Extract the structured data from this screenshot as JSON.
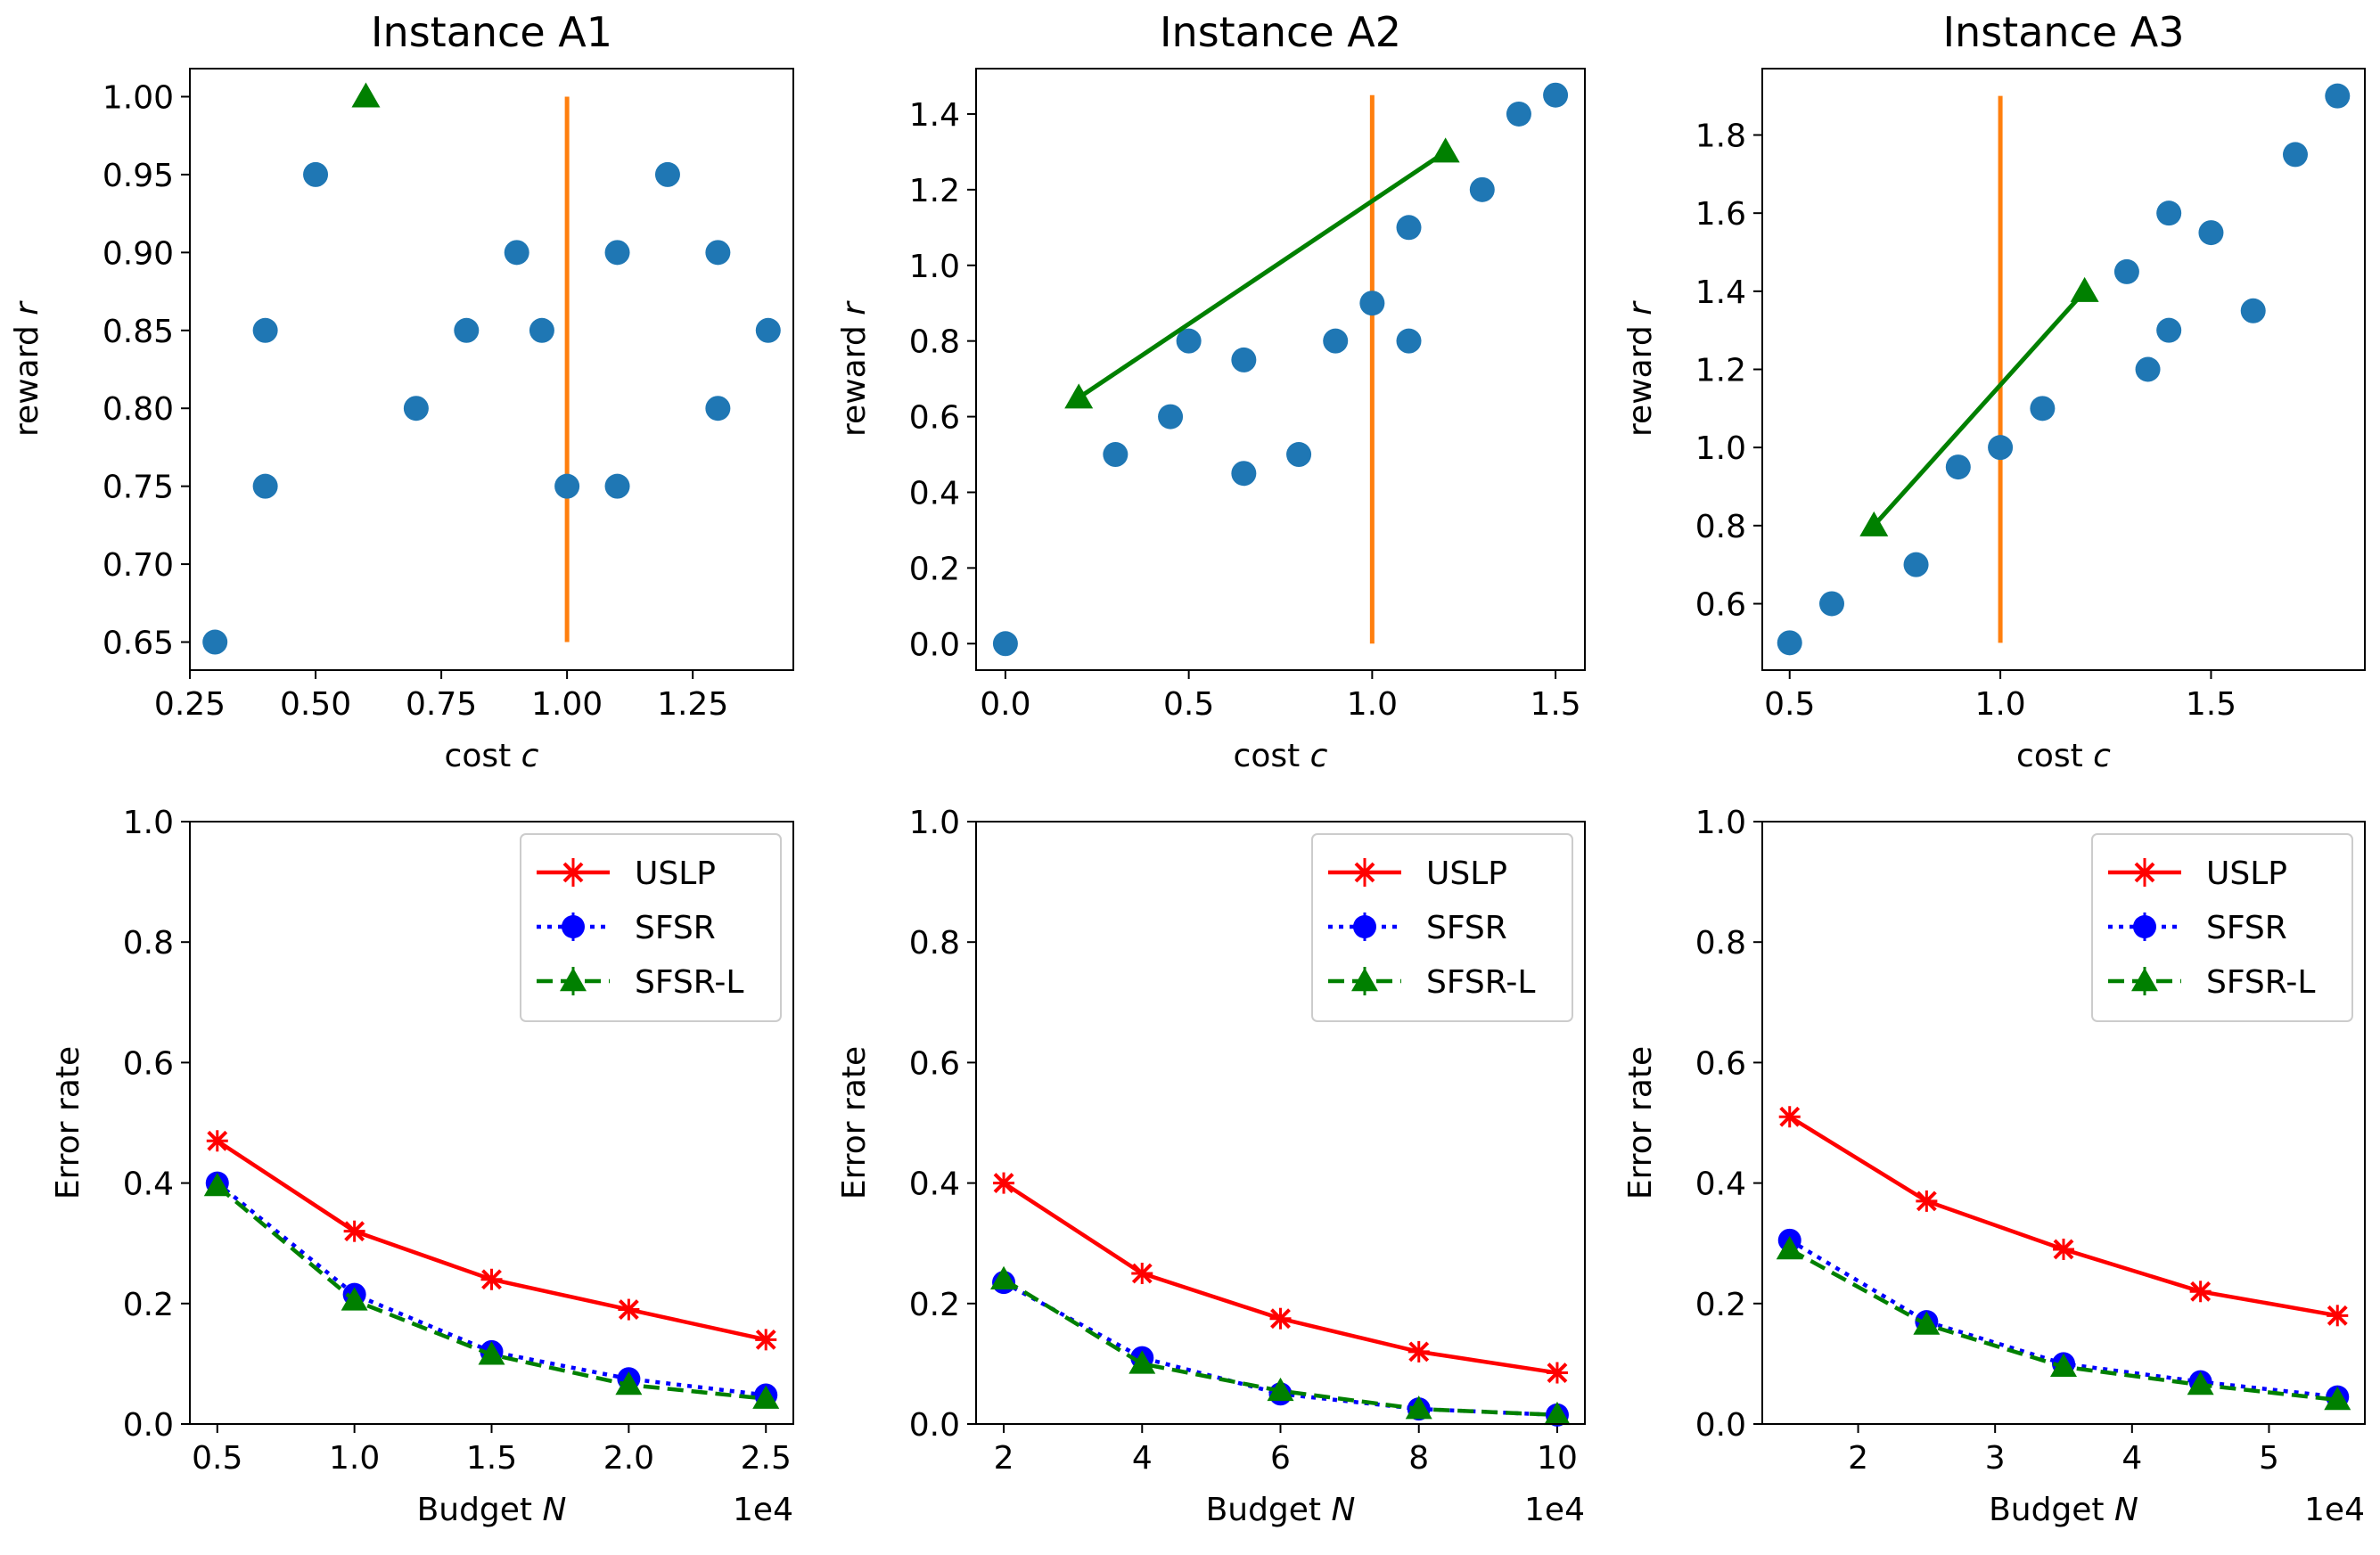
{
  "colors": {
    "scatter": "#1f77b4",
    "budget_line": "#ff7f0e",
    "best_arm": "#008000",
    "uslp": "#ff0000",
    "sfsr": "#0000ff",
    "sfsrl": "#008000"
  },
  "chart_data": [
    {
      "type": "scatter",
      "title": "Instance A1",
      "xlabel_main": "cost ",
      "xlabel_var": "c",
      "ylabel_main": "reward ",
      "ylabel_var": "r",
      "xlim": [
        0.25,
        1.45
      ],
      "ylim": [
        0.632,
        1.018
      ],
      "xticks": [
        0.25,
        0.5,
        0.75,
        1.0,
        1.25
      ],
      "xtick_labels": [
        "0.25",
        "0.50",
        "0.75",
        "1.00",
        "1.25"
      ],
      "yticks": [
        0.65,
        0.7,
        0.75,
        0.8,
        0.85,
        0.9,
        0.95,
        1.0
      ],
      "ytick_labels": [
        "0.65",
        "0.70",
        "0.75",
        "0.80",
        "0.85",
        "0.90",
        "0.95",
        "1.00"
      ],
      "points": [
        [
          0.3,
          0.65
        ],
        [
          0.4,
          0.85
        ],
        [
          0.4,
          0.75
        ],
        [
          0.5,
          0.95
        ],
        [
          0.7,
          0.8
        ],
        [
          0.8,
          0.85
        ],
        [
          0.9,
          0.9
        ],
        [
          0.95,
          0.85
        ],
        [
          1.0,
          0.75
        ],
        [
          1.1,
          0.9
        ],
        [
          1.1,
          0.75
        ],
        [
          1.2,
          0.95
        ],
        [
          1.3,
          0.9
        ],
        [
          1.3,
          0.8
        ],
        [
          1.4,
          0.85
        ]
      ],
      "budget_line": {
        "x": 1.0,
        "y_from": 0.65,
        "y_to": 1.0
      },
      "best_arms": [
        [
          0.6,
          1.0
        ]
      ]
    },
    {
      "type": "scatter",
      "title": "Instance A2",
      "xlabel_main": "cost ",
      "xlabel_var": "c",
      "ylabel_main": "reward ",
      "ylabel_var": "r",
      "xlim": [
        -0.08,
        1.58
      ],
      "ylim": [
        -0.07,
        1.52
      ],
      "xticks": [
        0.0,
        0.5,
        1.0,
        1.5
      ],
      "xtick_labels": [
        "0.0",
        "0.5",
        "1.0",
        "1.5"
      ],
      "yticks": [
        0.0,
        0.2,
        0.4,
        0.6,
        0.8,
        1.0,
        1.2,
        1.4
      ],
      "ytick_labels": [
        "0.0",
        "0.2",
        "0.4",
        "0.6",
        "0.8",
        "1.0",
        "1.2",
        "1.4"
      ],
      "points": [
        [
          0.0,
          0.0
        ],
        [
          0.3,
          0.5
        ],
        [
          0.45,
          0.6
        ],
        [
          0.5,
          0.8
        ],
        [
          0.65,
          0.75
        ],
        [
          0.65,
          0.45
        ],
        [
          0.8,
          0.5
        ],
        [
          0.9,
          0.8
        ],
        [
          1.0,
          0.9
        ],
        [
          1.1,
          1.1
        ],
        [
          1.1,
          0.8
        ],
        [
          1.3,
          1.2
        ],
        [
          1.4,
          1.4
        ],
        [
          1.5,
          1.45
        ]
      ],
      "budget_line": {
        "x": 1.0,
        "y_from": 0.0,
        "y_to": 1.45
      },
      "best_arms": [
        [
          0.2,
          0.65
        ],
        [
          1.2,
          1.3
        ]
      ]
    },
    {
      "type": "scatter",
      "title": "Instance A3",
      "xlabel_main": "cost ",
      "xlabel_var": "c",
      "ylabel_main": "reward ",
      "ylabel_var": "r",
      "xlim": [
        0.435,
        1.865
      ],
      "ylim": [
        0.43,
        1.97
      ],
      "xticks": [
        0.5,
        1.0,
        1.5
      ],
      "xtick_labels": [
        "0.5",
        "1.0",
        "1.5"
      ],
      "yticks": [
        0.6,
        0.8,
        1.0,
        1.2,
        1.4,
        1.6,
        1.8
      ],
      "ytick_labels": [
        "0.6",
        "0.8",
        "1.0",
        "1.2",
        "1.4",
        "1.6",
        "1.8"
      ],
      "points": [
        [
          0.5,
          0.5
        ],
        [
          0.6,
          0.6
        ],
        [
          0.8,
          0.7
        ],
        [
          0.9,
          0.95
        ],
        [
          1.0,
          1.0
        ],
        [
          1.1,
          1.1
        ],
        [
          1.3,
          1.45
        ],
        [
          1.35,
          1.2
        ],
        [
          1.4,
          1.6
        ],
        [
          1.4,
          1.3
        ],
        [
          1.5,
          1.55
        ],
        [
          1.6,
          1.35
        ],
        [
          1.7,
          1.75
        ],
        [
          1.8,
          1.9
        ]
      ],
      "budget_line": {
        "x": 1.0,
        "y_from": 0.5,
        "y_to": 1.9
      },
      "best_arms": [
        [
          0.7,
          0.8
        ],
        [
          1.2,
          1.4
        ]
      ]
    },
    {
      "type": "line",
      "xlabel_main": "Budget ",
      "xlabel_var": "N",
      "ylabel": "Error rate",
      "offset_text": "1e4",
      "xlim": [
        0.4,
        2.6
      ],
      "ylim": [
        0.0,
        1.0
      ],
      "xticks": [
        0.5,
        1.0,
        1.5,
        2.0,
        2.5
      ],
      "xtick_labels": [
        "0.5",
        "1.0",
        "1.5",
        "2.0",
        "2.5"
      ],
      "yticks": [
        0.0,
        0.2,
        0.4,
        0.6,
        0.8,
        1.0
      ],
      "ytick_labels": [
        "0.0",
        "0.2",
        "0.4",
        "0.6",
        "0.8",
        "1.0"
      ],
      "x": [
        0.5,
        1.0,
        1.5,
        2.0,
        2.5
      ],
      "legend_position": "upper right",
      "series": [
        {
          "name": "USLP",
          "style": "solid",
          "marker": "x",
          "values": [
            0.47,
            0.32,
            0.24,
            0.19,
            0.14
          ]
        },
        {
          "name": "SFSR",
          "style": "dotted",
          "marker": "circle",
          "values": [
            0.4,
            0.215,
            0.12,
            0.075,
            0.048
          ]
        },
        {
          "name": "SFSR-L",
          "style": "dashed",
          "marker": "triangle",
          "values": [
            0.395,
            0.205,
            0.115,
            0.065,
            0.042
          ]
        }
      ]
    },
    {
      "type": "line",
      "xlabel_main": "Budget ",
      "xlabel_var": "N",
      "ylabel": "Error rate",
      "offset_text": "1e4",
      "xlim": [
        1.6,
        10.4
      ],
      "ylim": [
        0.0,
        1.0
      ],
      "xticks": [
        2,
        4,
        6,
        8,
        10
      ],
      "xtick_labels": [
        "2",
        "4",
        "6",
        "8",
        "10"
      ],
      "yticks": [
        0.0,
        0.2,
        0.4,
        0.6,
        0.8,
        1.0
      ],
      "ytick_labels": [
        "0.0",
        "0.2",
        "0.4",
        "0.6",
        "0.8",
        "1.0"
      ],
      "x": [
        2,
        4,
        6,
        8,
        10
      ],
      "legend_position": "upper right",
      "series": [
        {
          "name": "USLP",
          "style": "solid",
          "marker": "x",
          "values": [
            0.4,
            0.25,
            0.175,
            0.12,
            0.085
          ]
        },
        {
          "name": "SFSR",
          "style": "dotted",
          "marker": "circle",
          "values": [
            0.235,
            0.11,
            0.05,
            0.025,
            0.015
          ]
        },
        {
          "name": "SFSR-L",
          "style": "dashed",
          "marker": "triangle",
          "values": [
            0.24,
            0.1,
            0.055,
            0.025,
            0.015
          ]
        }
      ]
    },
    {
      "type": "line",
      "xlabel_main": "Budget ",
      "xlabel_var": "N",
      "ylabel": "Error rate",
      "offset_text": "1e4",
      "xlim": [
        1.3,
        5.7
      ],
      "ylim": [
        0.0,
        1.0
      ],
      "xticks": [
        2,
        3,
        4,
        5
      ],
      "xtick_labels": [
        "2",
        "3",
        "4",
        "5"
      ],
      "yticks": [
        0.0,
        0.2,
        0.4,
        0.6,
        0.8,
        1.0
      ],
      "ytick_labels": [
        "0.0",
        "0.2",
        "0.4",
        "0.6",
        "0.8",
        "1.0"
      ],
      "x": [
        1.5,
        2.5,
        3.5,
        4.5,
        5.5
      ],
      "legend_position": "upper right",
      "series": [
        {
          "name": "USLP",
          "style": "solid",
          "marker": "x",
          "values": [
            0.51,
            0.37,
            0.29,
            0.22,
            0.18
          ]
        },
        {
          "name": "SFSR",
          "style": "dotted",
          "marker": "circle",
          "values": [
            0.305,
            0.17,
            0.1,
            0.07,
            0.045
          ]
        },
        {
          "name": "SFSR-L",
          "style": "dashed",
          "marker": "triangle",
          "values": [
            0.29,
            0.165,
            0.095,
            0.065,
            0.04
          ]
        }
      ]
    }
  ]
}
